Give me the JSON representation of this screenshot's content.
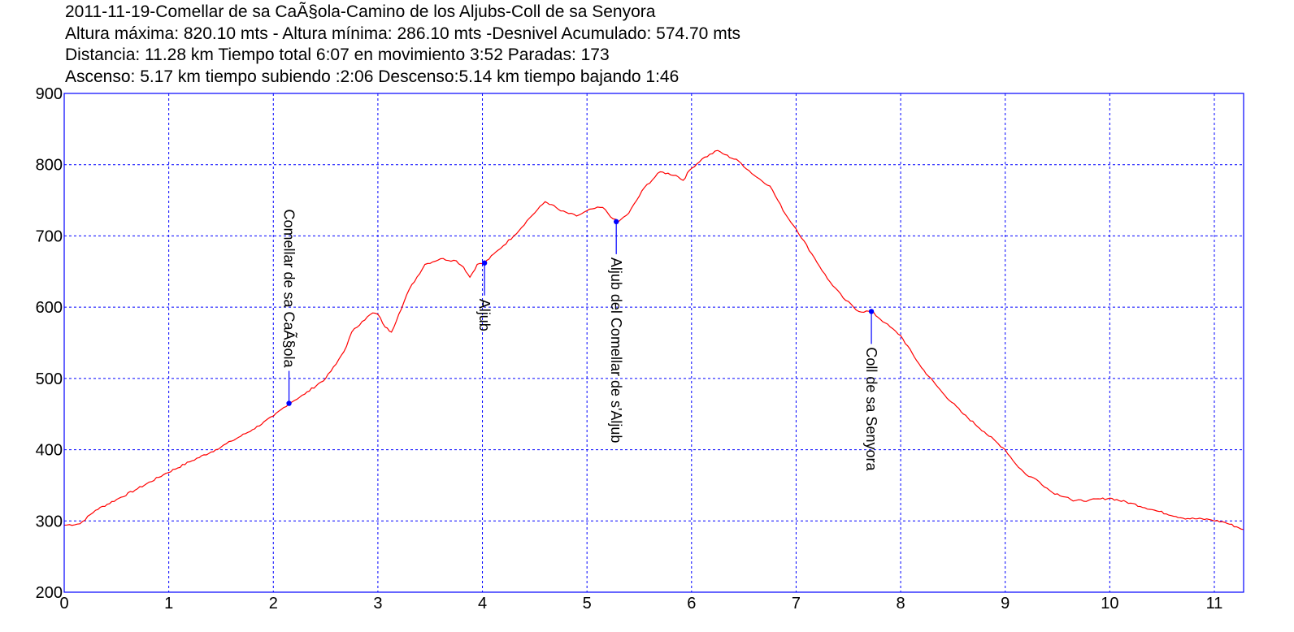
{
  "header": {
    "line1": "2011-11-19-Comellar de sa CaÃ§ola-Camino de los Aljubs-Coll de sa Senyora",
    "line2": "Altura máxima: 820.10 mts - Altura mínima: 286.10 mts -Desnivel Acumulado: 574.70 mts",
    "line3": "Distancia: 11.28 km  Tiempo total 6:07  en movimiento 3:52 Paradas: 173",
    "line4": "Ascenso: 5.17 km  tiempo subiendo :2:06  Descenso:5.14 km tiempo bajando 1:46"
  },
  "chart_data": {
    "type": "line",
    "xlim": [
      0,
      11.28
    ],
    "ylim": [
      200,
      900
    ],
    "xticks": [
      0,
      1,
      2,
      3,
      4,
      5,
      6,
      7,
      8,
      9,
      10,
      11
    ],
    "yticks": [
      200,
      300,
      400,
      500,
      600,
      700,
      800,
      900
    ],
    "grid": true,
    "colors": {
      "line": "#ff0000",
      "frame": "#0000ff",
      "grid": "#0000ff",
      "waypoint": "#0000ff"
    },
    "series": [
      {
        "x": [
          0,
          0.15,
          0.3,
          0.5,
          0.7,
          0.95,
          1.2,
          1.45,
          1.6,
          1.8,
          2.0,
          2.15,
          2.3,
          2.5,
          2.6,
          2.7,
          2.75,
          2.85,
          2.95,
          3.0,
          3.07,
          3.13,
          3.2,
          3.3,
          3.45,
          3.6,
          3.75,
          3.82,
          3.88,
          3.95,
          4.02,
          4.15,
          4.3,
          4.45,
          4.6,
          4.66,
          4.75,
          4.9,
          5.05,
          5.15,
          5.25,
          5.3,
          5.4,
          5.55,
          5.7,
          5.85,
          5.92,
          5.98,
          6.1,
          6.25,
          6.32,
          6.45,
          6.6,
          6.75,
          6.9,
          7.0,
          7.15,
          7.3,
          7.45,
          7.6,
          7.72,
          7.85,
          8.0,
          8.2,
          8.4,
          8.6,
          8.8,
          9.0,
          9.1,
          9.2,
          9.3,
          9.45,
          9.6,
          9.65,
          9.8,
          10.0,
          10.2,
          10.45,
          10.7,
          10.95,
          11.1,
          11.28
        ],
        "y": [
          294,
          296,
          315,
          330,
          345,
          365,
          383,
          400,
          412,
          428,
          447,
          465,
          478,
          500,
          520,
          545,
          565,
          580,
          592,
          590,
          572,
          565,
          590,
          625,
          660,
          668,
          665,
          656,
          642,
          660,
          662,
          680,
          700,
          725,
          748,
          744,
          735,
          728,
          738,
          740,
          724,
          720,
          732,
          768,
          790,
          785,
          778,
          792,
          808,
          820,
          814,
          805,
          785,
          770,
          730,
          710,
          675,
          640,
          613,
          594,
          594,
          578,
          560,
          515,
          480,
          450,
          425,
          400,
          380,
          365,
          358,
          340,
          333,
          328,
          329,
          332,
          325,
          314,
          304,
          302,
          298,
          288
        ]
      }
    ],
    "waypoints": [
      {
        "name": "Comellar de sa CaÃ§ola",
        "x": 2.15,
        "y": 465
      },
      {
        "name": "Aljub",
        "x": 4.02,
        "y": 662
      },
      {
        "name": "Aljub del Comellar de s'Aljub",
        "x": 5.28,
        "y": 720
      },
      {
        "name": "Coll de sa Senyora",
        "x": 7.72,
        "y": 594
      }
    ]
  }
}
